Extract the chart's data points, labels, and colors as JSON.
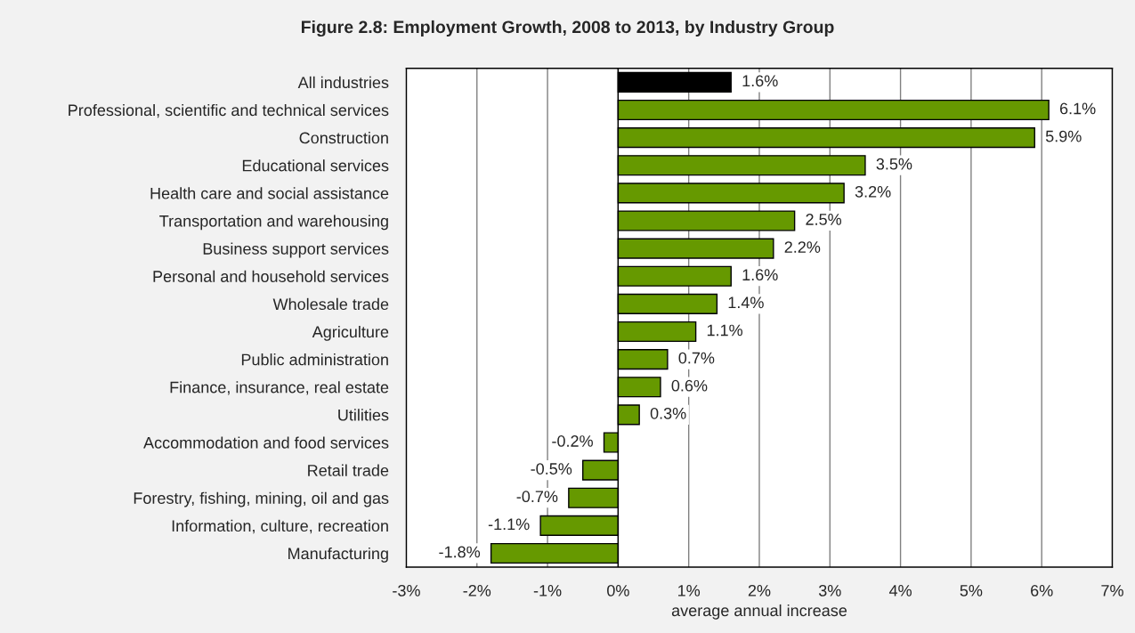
{
  "chart_data": {
    "type": "bar",
    "orientation": "horizontal",
    "title": "Figure 2.8: Employment Growth, 2008 to 2013, by Industry Group",
    "xlabel": "average annual increase",
    "categories": [
      "All industries",
      "Professional, scientific and technical services",
      "Construction",
      "Educational services",
      "Health care and social assistance",
      "Transportation and warehousing",
      "Business support services",
      "Personal and household services",
      "Wholesale trade",
      "Agriculture",
      "Public administration",
      "Finance, insurance, real estate",
      "Utilities",
      "Accommodation and food services",
      "Retail trade",
      "Forestry, fishing, mining, oil and gas",
      "Information, culture, recreation",
      "Manufacturing"
    ],
    "values": [
      1.6,
      6.1,
      5.9,
      3.5,
      3.2,
      2.5,
      2.2,
      1.6,
      1.4,
      1.1,
      0.7,
      0.6,
      0.3,
      -0.2,
      -0.5,
      -0.7,
      -1.1,
      -1.8
    ],
    "colors": [
      "#000000",
      "#669900",
      "#669900",
      "#669900",
      "#669900",
      "#669900",
      "#669900",
      "#669900",
      "#669900",
      "#669900",
      "#669900",
      "#669900",
      "#669900",
      "#669900",
      "#669900",
      "#669900",
      "#669900",
      "#669900"
    ],
    "value_labels": [
      "1.6%",
      "6.1%",
      "5.9%",
      "3.5%",
      "3.2%",
      "2.5%",
      "2.2%",
      "1.6%",
      "1.4%",
      "1.1%",
      "0.7%",
      "0.6%",
      "0.3%",
      "-0.2%",
      "-0.5%",
      "-0.7%",
      "-1.1%",
      "-1.8%"
    ],
    "xlim": [
      -3,
      7
    ],
    "xticks": [
      {
        "value": -3,
        "label": "-3%"
      },
      {
        "value": -2,
        "label": "-2%"
      },
      {
        "value": -1,
        "label": "-1%"
      },
      {
        "value": 0,
        "label": "0%"
      },
      {
        "value": 1,
        "label": "1%"
      },
      {
        "value": 2,
        "label": "2%"
      },
      {
        "value": 3,
        "label": "3%"
      },
      {
        "value": 4,
        "label": "4%"
      },
      {
        "value": 5,
        "label": "5%"
      },
      {
        "value": 6,
        "label": "6%"
      },
      {
        "value": 7,
        "label": "7%"
      }
    ],
    "grid": "x",
    "legend": false
  }
}
